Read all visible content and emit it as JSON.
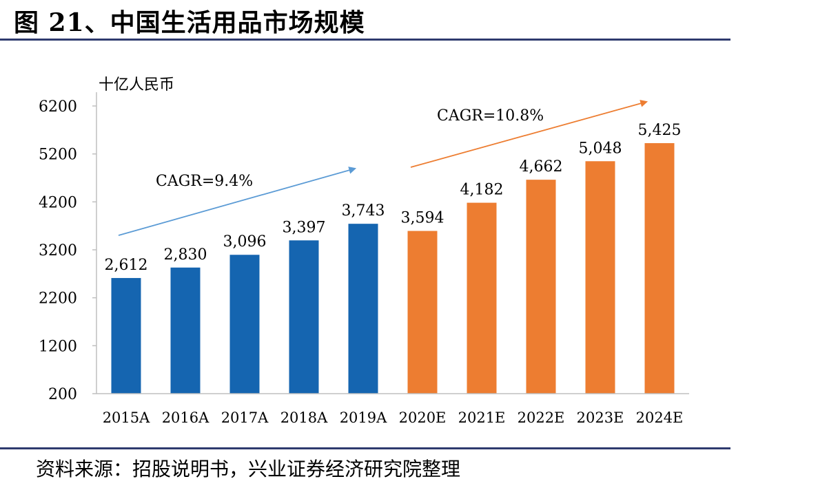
{
  "title": "图 21、中国生活用品市场规模",
  "source": "资料来源：招股说明书，兴业证券经济研究院整理",
  "chart_data": {
    "type": "bar",
    "unit_label": "十亿人民币",
    "categories": [
      "2015A",
      "2016A",
      "2017A",
      "2018A",
      "2019A",
      "2020E",
      "2021E",
      "2022E",
      "2023E",
      "2024E"
    ],
    "values": [
      2612,
      2830,
      3096,
      3397,
      3743,
      3594,
      4182,
      4662,
      5048,
      5425
    ],
    "value_labels": [
      "2,612",
      "2,830",
      "3,096",
      "3,397",
      "3,743",
      "3,594",
      "4,182",
      "4,662",
      "5,048",
      "5,425"
    ],
    "bar_colors": [
      "#1565b0",
      "#1565b0",
      "#1565b0",
      "#1565b0",
      "#1565b0",
      "#ed7d31",
      "#ed7d31",
      "#ed7d31",
      "#ed7d31",
      "#ed7d31"
    ],
    "yticks": [
      200,
      1200,
      2200,
      3200,
      4200,
      5200,
      6200
    ],
    "ylim": [
      200,
      6200
    ],
    "annotations": [
      {
        "text": "CAGR=9.4%",
        "color": "#5b9bd5"
      },
      {
        "text": "CAGR=10.8%",
        "color": "#ed7d31"
      }
    ],
    "grid": false
  }
}
